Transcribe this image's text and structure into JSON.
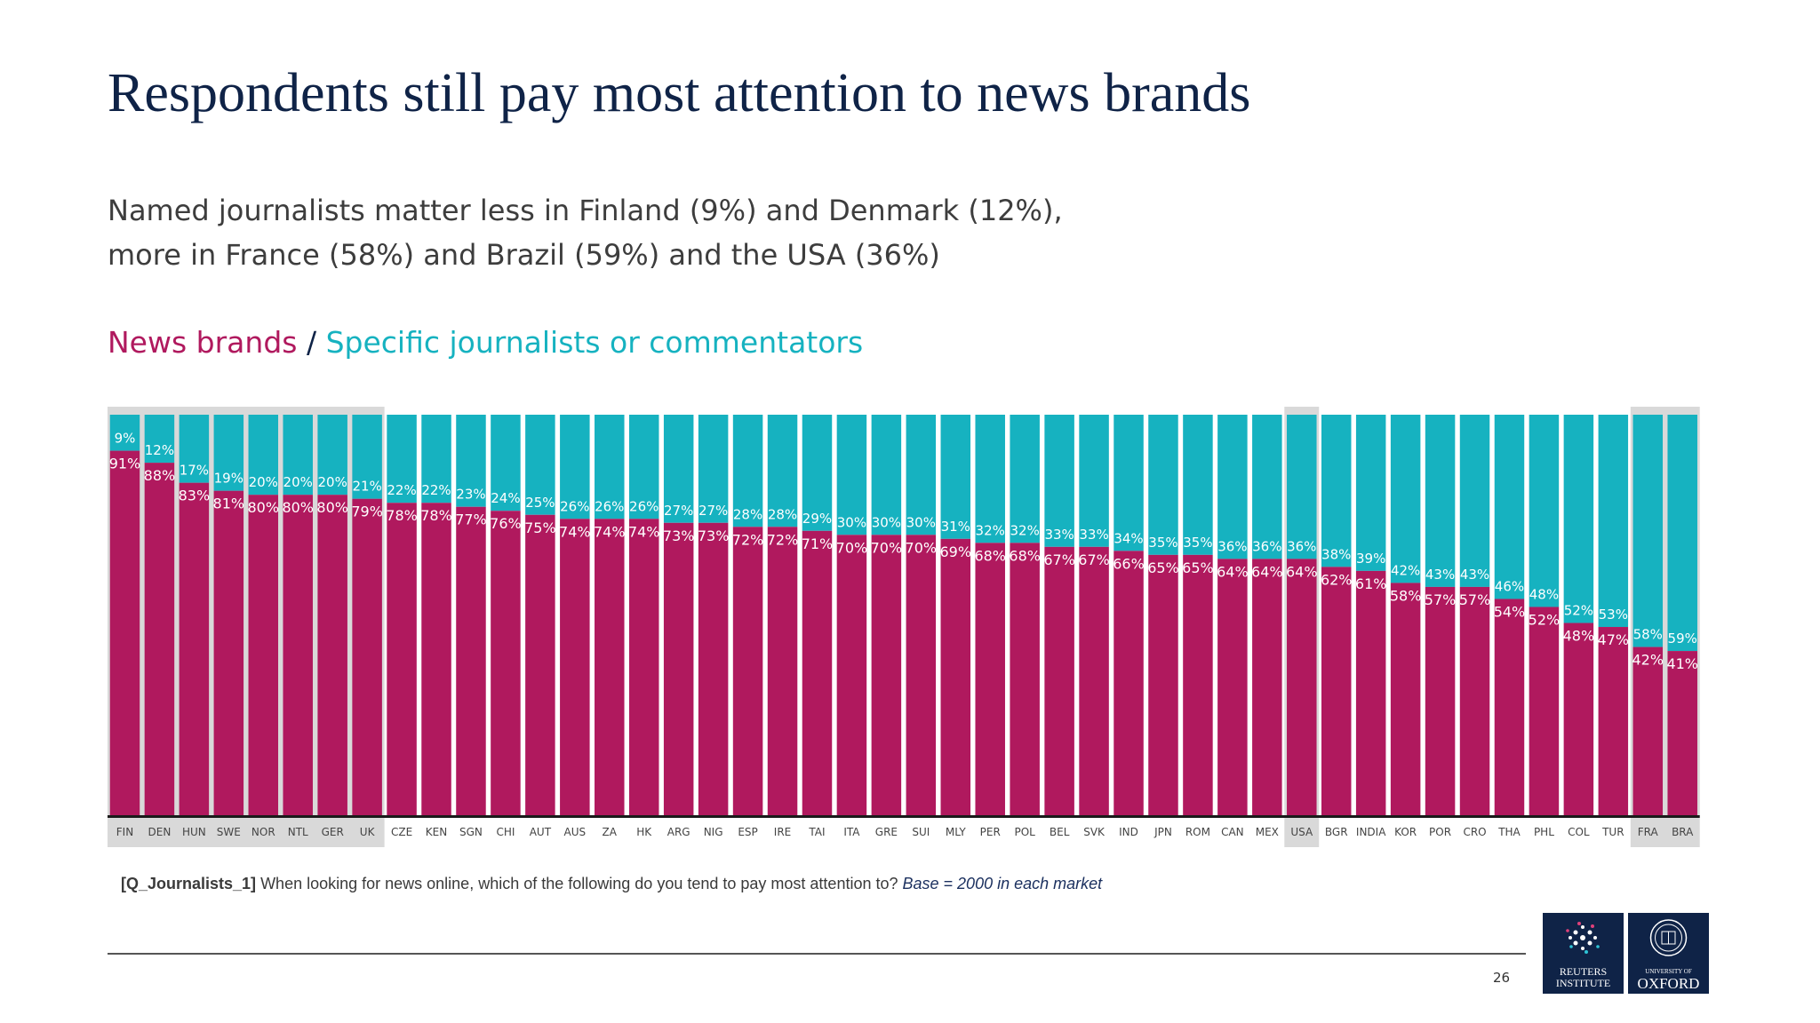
{
  "slide": {
    "title": "Respondents still pay most attention to news brands",
    "subtitle_line1": "Named journalists matter less in Finland (9%) and Denmark (12%),",
    "subtitle_line2": "more in France (58%) and Brazil (59%) and the USA (36%)",
    "legend_brands": "News brands",
    "legend_separator": " / ",
    "legend_journalists": "Specific journalists or commentators",
    "footnote_question": "[Q_Journalists_1]",
    "footnote_text": " When looking for news online, which of the following do you tend to pay most attention to? ",
    "footnote_base": "Base = 2000 in each market",
    "page_number": "26",
    "logo_reuters_text": "REUTERS INSTITUTE",
    "logo_oxford_small": "UNIVERSITY OF",
    "logo_oxford_large": "OXFORD"
  },
  "colors": {
    "news_brands": "#b0195e",
    "journalists": "#16b2c0",
    "highlight": "#d9d9d9",
    "title": "#0f2347"
  },
  "chart_data": {
    "type": "bar",
    "stacked": true,
    "percent_stacked": true,
    "categories": [
      "FIN",
      "DEN",
      "HUN",
      "SWE",
      "NOR",
      "NTL",
      "GER",
      "UK",
      "CZE",
      "KEN",
      "SGN",
      "CHI",
      "AUT",
      "AUS",
      "ZA",
      "HK",
      "ARG",
      "NIG",
      "ESP",
      "IRE",
      "TAI",
      "ITA",
      "GRE",
      "SUI",
      "MLY",
      "PER",
      "POL",
      "BEL",
      "SVK",
      "IND",
      "JPN",
      "ROM",
      "CAN",
      "MEX",
      "USA",
      "BGR",
      "INDIA",
      "KOR",
      "POR",
      "CRO",
      "THA",
      "PHL",
      "COL",
      "TUR",
      "FRA",
      "BRA"
    ],
    "series": [
      {
        "name": "News brands",
        "values": [
          91,
          88,
          83,
          81,
          80,
          80,
          80,
          79,
          78,
          78,
          77,
          76,
          75,
          74,
          74,
          74,
          73,
          73,
          72,
          72,
          71,
          70,
          70,
          70,
          69,
          68,
          68,
          67,
          67,
          66,
          65,
          65,
          64,
          64,
          64,
          62,
          61,
          58,
          57,
          57,
          54,
          52,
          48,
          47,
          42,
          41
        ]
      },
      {
        "name": "Specific journalists or commentators",
        "values": [
          9,
          12,
          17,
          19,
          20,
          20,
          20,
          21,
          22,
          22,
          23,
          24,
          25,
          26,
          26,
          26,
          27,
          27,
          28,
          28,
          29,
          30,
          30,
          30,
          31,
          32,
          32,
          33,
          33,
          34,
          35,
          35,
          36,
          36,
          36,
          38,
          39,
          42,
          43,
          43,
          46,
          48,
          52,
          53,
          58,
          59
        ]
      }
    ],
    "highlighted_categories": [
      "FIN",
      "DEN",
      "HUN",
      "SWE",
      "NOR",
      "NTL",
      "GER",
      "UK",
      "USA",
      "FRA",
      "BRA"
    ],
    "ylim": [
      0,
      100
    ],
    "value_suffix": "%"
  }
}
